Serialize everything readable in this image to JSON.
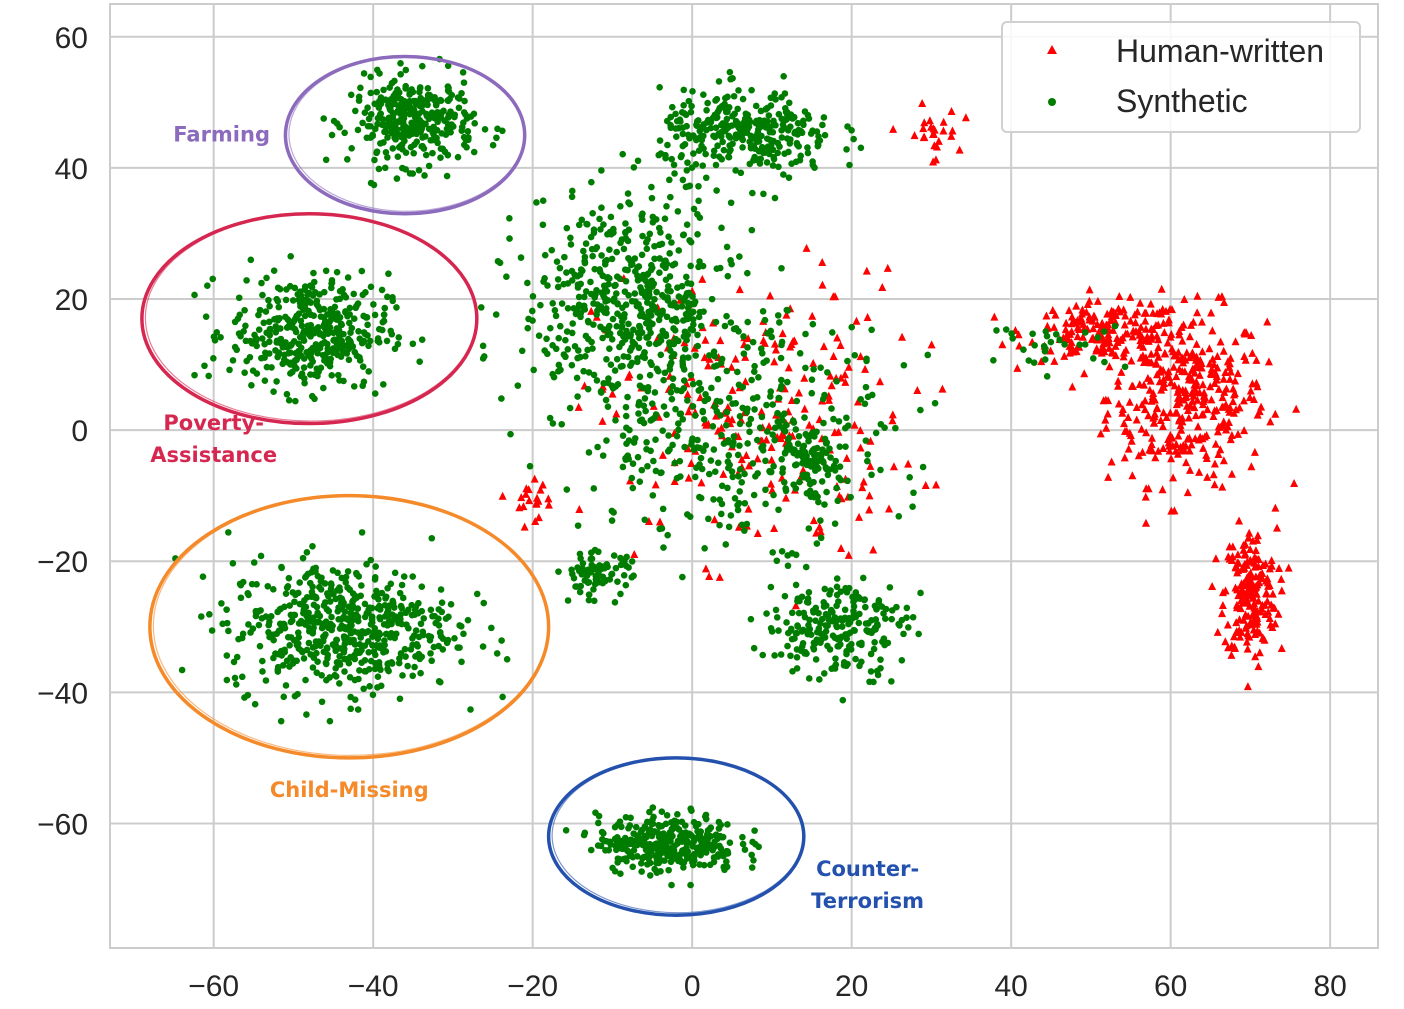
{
  "chart_data": {
    "type": "scatter",
    "title": "",
    "xlabel": "",
    "ylabel": "",
    "xlim": [
      -73,
      86
    ],
    "ylim": [
      -79,
      65
    ],
    "xticks": [
      -60,
      -40,
      -20,
      0,
      20,
      40,
      60,
      80
    ],
    "yticks": [
      -60,
      -40,
      -20,
      0,
      20,
      40,
      60
    ],
    "xtick_labels": [
      "−60",
      "−40",
      "−20",
      "0",
      "20",
      "40",
      "60",
      "80"
    ],
    "ytick_labels": [
      "−60",
      "−40",
      "−20",
      "0",
      "20",
      "40",
      "60"
    ],
    "grid": true,
    "legend_position": "top-right",
    "series": [
      {
        "name": "Human-written",
        "marker": "triangle",
        "color": "#ff0000",
        "clusters": [
          {
            "center": [
              62,
              5
            ],
            "spread": [
              9,
              12
            ],
            "count": 360
          },
          {
            "center": [
              52,
              15
            ],
            "spread": [
              9,
              4
            ],
            "count": 170
          },
          {
            "center": [
              70,
              -25
            ],
            "spread": [
              3,
              9
            ],
            "count": 200
          },
          {
            "center": [
              8,
              2
            ],
            "spread": [
              18,
              20
            ],
            "count": 230
          },
          {
            "center": [
              30,
              45
            ],
            "spread": [
              3,
              4
            ],
            "count": 25
          },
          {
            "center": [
              -20,
              -10
            ],
            "spread": [
              4,
              3
            ],
            "count": 20
          }
        ]
      },
      {
        "name": "Synthetic",
        "marker": "circle",
        "color": "#007d00",
        "clusters": [
          {
            "center": [
              -35,
              47
            ],
            "spread": [
              7,
              6
            ],
            "count": 330
          },
          {
            "center": [
              -48,
              15
            ],
            "spread": [
              9,
              8
            ],
            "count": 400
          },
          {
            "center": [
              -44,
              -30
            ],
            "spread": [
              13,
              9
            ],
            "count": 560
          },
          {
            "center": [
              -3,
              -63
            ],
            "spread": [
              8,
              4
            ],
            "count": 330
          },
          {
            "center": [
              7,
              45
            ],
            "spread": [
              10,
              6
            ],
            "count": 320
          },
          {
            "center": [
              -8,
              20
            ],
            "spread": [
              12,
              14
            ],
            "count": 520
          },
          {
            "center": [
              5,
              0
            ],
            "spread": [
              18,
              15
            ],
            "count": 380
          },
          {
            "center": [
              18,
              -30
            ],
            "spread": [
              8,
              7
            ],
            "count": 230
          },
          {
            "center": [
              14,
              -5
            ],
            "spread": [
              4,
              4
            ],
            "count": 90
          },
          {
            "center": [
              -12,
              -22
            ],
            "spread": [
              4,
              3
            ],
            "count": 80
          },
          {
            "center": [
              46,
              13
            ],
            "spread": [
              8,
              3
            ],
            "count": 30
          }
        ]
      }
    ],
    "annotations": [
      {
        "text": "Farming",
        "color": "#8c6bbd",
        "ellipse_center": [
          -36,
          45
        ],
        "ellipse_radii": [
          15,
          12
        ],
        "label_at": [
          -59,
          44
        ]
      },
      {
        "text": "Poverty-",
        "text2": "Assistance",
        "color": "#d62750",
        "ellipse_center": [
          -48,
          17
        ],
        "ellipse_radii": [
          21,
          16
        ],
        "label_at": [
          -60,
          0
        ]
      },
      {
        "text": "Child-Missing",
        "color": "#f48a2a",
        "ellipse_center": [
          -43,
          -30
        ],
        "ellipse_radii": [
          25,
          20
        ],
        "label_at": [
          -43,
          -56
        ]
      },
      {
        "text": "Counter-",
        "text2": "Terrorism",
        "color": "#2451ad",
        "ellipse_center": [
          -2,
          -62
        ],
        "ellipse_radii": [
          16,
          12
        ],
        "label_at": [
          22,
          -68
        ]
      }
    ]
  }
}
